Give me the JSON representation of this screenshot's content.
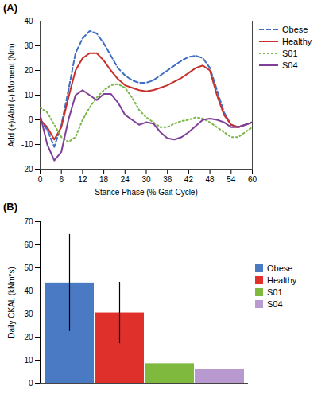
{
  "chart_data": [
    {
      "type": "line",
      "title": "(A)",
      "x_label": "Stance Phase (% Gait Cycle)",
      "y_label": "Add (+)/Abd (-) Moment (Nm)",
      "x": [
        0,
        2,
        4,
        6,
        8,
        10,
        12,
        14,
        16,
        18,
        20,
        22,
        24,
        26,
        28,
        30,
        32,
        34,
        36,
        38,
        40,
        42,
        44,
        46,
        48,
        50,
        52,
        54,
        56,
        58,
        60
      ],
      "series": [
        {
          "name": "Obese",
          "color": "#3e6fc4",
          "line_style": "dashed",
          "values": [
            0,
            -4,
            -11,
            -2,
            12,
            27,
            33,
            36,
            35,
            31,
            26,
            21,
            18,
            16,
            15,
            15,
            16,
            18,
            20,
            22,
            24,
            25.5,
            26,
            25,
            21,
            12,
            3,
            -2,
            -3,
            -2,
            -1
          ]
        },
        {
          "name": "Healthy",
          "color": "#c8302c",
          "line_style": "solid",
          "values": [
            0,
            -3,
            -8,
            -3,
            9,
            20,
            25,
            27,
            27,
            24,
            20,
            16.5,
            14,
            13,
            12,
            11.5,
            12,
            13,
            14,
            15.5,
            17,
            19,
            21,
            22,
            20,
            10,
            2,
            -2,
            -3,
            -2,
            -1
          ]
        },
        {
          "name": "S01",
          "color": "#7ab648",
          "line_style": "dotted",
          "values": [
            5,
            3,
            -2,
            -7,
            -9,
            -7,
            0,
            5,
            9,
            12,
            14,
            14.5,
            13,
            9,
            4,
            1,
            -1,
            -3,
            -3,
            -1.5,
            -0.5,
            0,
            1,
            0.5,
            -1,
            -3,
            -5,
            -7,
            -7,
            -5,
            -3
          ]
        },
        {
          "name": "S04",
          "color": "#7f3f98",
          "line_style": "solid",
          "values": [
            2,
            -10,
            -16.5,
            -13,
            0,
            10,
            12,
            10,
            8,
            10.5,
            10.5,
            7,
            2,
            0,
            -2,
            -1,
            -1.5,
            -5,
            -7.5,
            -8,
            -7,
            -5,
            -2.5,
            0,
            0.5,
            0,
            -1,
            -3,
            -3,
            -2,
            -1
          ]
        }
      ],
      "xlim": [
        0,
        60
      ],
      "xticks": [
        0,
        6,
        12,
        18,
        24,
        30,
        36,
        42,
        48,
        54,
        60
      ],
      "ylim": [
        -20,
        40
      ],
      "yticks": [
        -20,
        -10,
        0,
        10,
        20,
        30,
        40
      ],
      "grid": false,
      "legend": "right"
    },
    {
      "type": "bar",
      "title": "(B)",
      "y_label": "Daily CKAL (kNm*s)",
      "categories": [
        "Obese",
        "Healthy",
        "S01",
        "S04"
      ],
      "values": [
        43.5,
        30.5,
        8.5,
        6
      ],
      "error": [
        21,
        13.3,
        null,
        null
      ],
      "colors": [
        "#4a7ac4",
        "#e0302c",
        "#7fba3f",
        "#b89ad0"
      ],
      "ylim": [
        0,
        70
      ],
      "yticks": [
        0,
        10,
        20,
        30,
        40,
        50,
        60,
        70
      ],
      "grid": false,
      "legend": "right",
      "tick_labels": "y"
    }
  ]
}
